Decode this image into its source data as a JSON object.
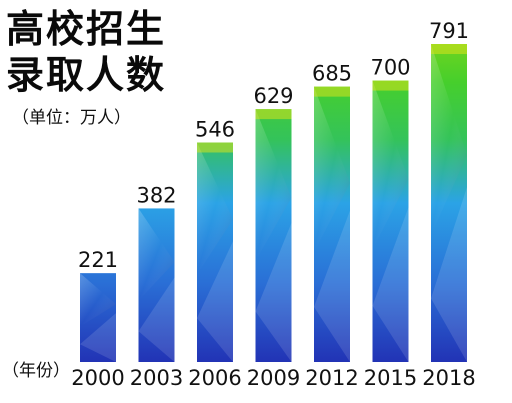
{
  "title_line1": "高校招生",
  "title_line2": "录取人数",
  "unit_note": "（单位：万人）",
  "xaxis_title": "（年份）",
  "chart_data": {
    "type": "bar",
    "title": "高校招生录取人数",
    "unit": "（单位：万人）",
    "xlabel": "（年份）",
    "ylabel": "",
    "categories": [
      "2000",
      "2003",
      "2006",
      "2009",
      "2012",
      "2015",
      "2018"
    ],
    "values": [
      221,
      382,
      546,
      629,
      685,
      700,
      791
    ],
    "ylim": [
      0,
      791
    ],
    "grid": false,
    "legend": "none",
    "colors": {
      "bottom": "#1f2fb8",
      "middle": "#2a9be0",
      "upper": "#35c63c",
      "top": "#d9e21c"
    }
  }
}
